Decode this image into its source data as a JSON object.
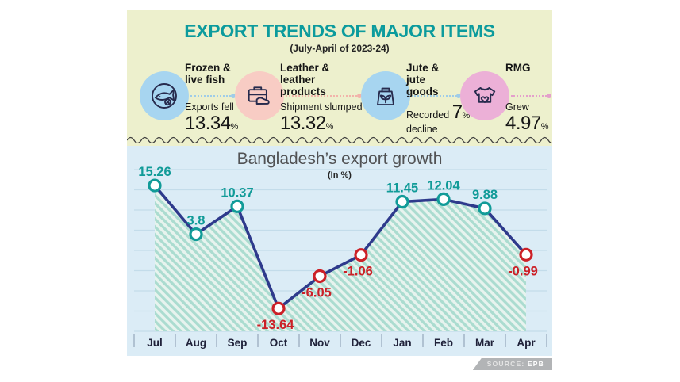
{
  "infographic": {
    "title": "EXPORT TRENDS OF MAJOR ITEMS",
    "subtitle": "(July-April of 2023-24)",
    "background_color": "#edf0cd",
    "items": [
      {
        "title": "Frozen & live fish",
        "lead": "Exports fell",
        "value": "13.34",
        "percent": "%",
        "trail": "",
        "icon": "fish-icon",
        "circle_color": "#a7d5f0",
        "connector_color": "#9fcce8"
      },
      {
        "title": "Leather & leather products",
        "lead": "Shipment slumped",
        "value": "13.32",
        "percent": "%",
        "trail": "",
        "icon": "briefcase-shoe-icon",
        "circle_color": "#f8ccc4",
        "connector_color": "#f2b3aa"
      },
      {
        "title": "Jute & jute goods",
        "lead": "Recorded",
        "value": "7",
        "percent": "%",
        "trail": "decline",
        "icon": "jute-bag-icon",
        "circle_color": "#a7d5f0",
        "connector_color": "#9fcce8"
      },
      {
        "title": "RMG",
        "lead": "Grew",
        "value": "4.97",
        "percent": "%",
        "trail": "",
        "icon": "sweater-icon",
        "circle_color": "#ecb0d7",
        "connector_color": "#e49fcb"
      }
    ]
  },
  "chart_data": {
    "type": "line",
    "title": "Bangladesh’s export growth",
    "subtitle": "(In %)",
    "categories": [
      "Jul",
      "Aug",
      "Sep",
      "Oct",
      "Nov",
      "Dec",
      "Jan",
      "Feb",
      "Mar",
      "Apr"
    ],
    "values": [
      15.26,
      3.8,
      10.37,
      -13.64,
      -6.05,
      -1.06,
      11.45,
      12.04,
      9.88,
      -0.99
    ],
    "ylim": [
      -19,
      19
    ],
    "grid": true,
    "legend": false,
    "area_fill": "hatched",
    "colors": {
      "background": "#dbecf6",
      "gridline": "#c3dcea",
      "line": "#2e3a8c",
      "positive": "#119b98",
      "negative": "#cc2027",
      "marker_fill": "#ffffff",
      "area_base": "#e7f3ee",
      "area_stripe": "#abdcd0",
      "axis_text": "#20223a",
      "tick": "#9fb0c2"
    }
  },
  "source": {
    "label": "SOURCE:",
    "value": "EPB"
  }
}
